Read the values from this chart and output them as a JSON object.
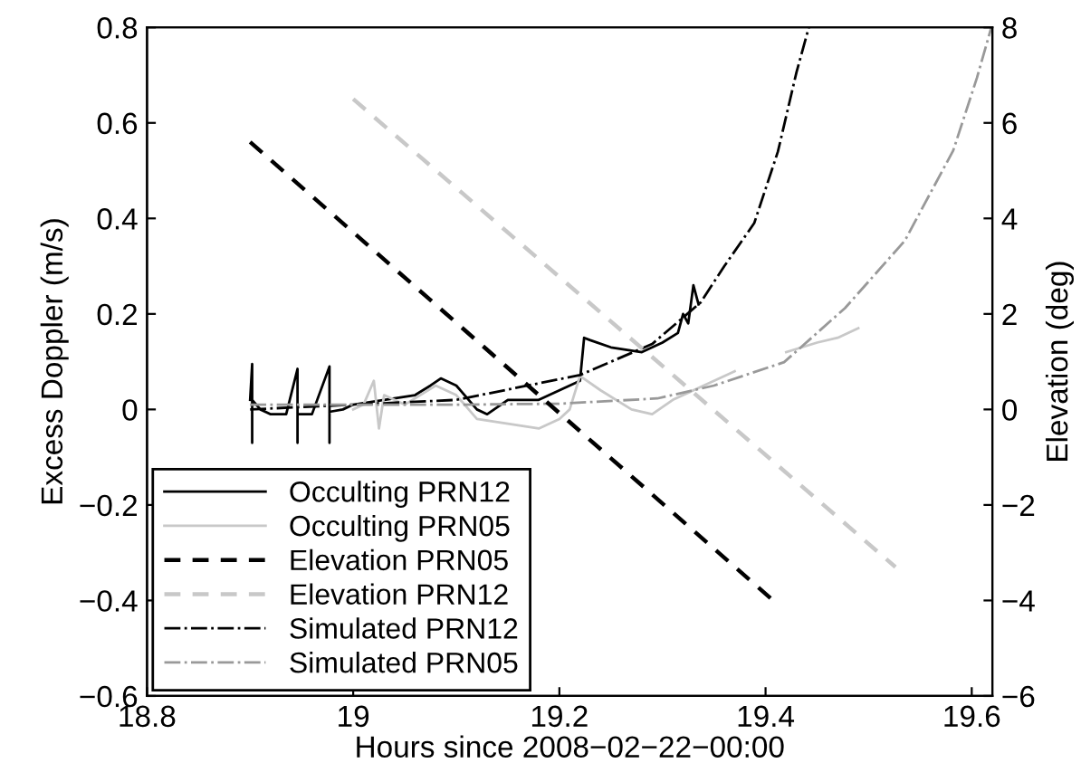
{
  "chart_data": {
    "type": "line",
    "xlabel": "Hours since 2008−02−22−00:00",
    "ylabel": "Excess Doppler (m/s)",
    "y2label": "Elevation (deg)",
    "xlim": [
      18.8,
      19.62
    ],
    "xticks": [
      18.8,
      19,
      19.2,
      19.4,
      19.6
    ],
    "ylim": [
      -0.6,
      0.8
    ],
    "yticks": [
      -0.6,
      -0.4,
      -0.2,
      0,
      0.2,
      0.4,
      0.6,
      0.8
    ],
    "y2lim": [
      -6,
      8
    ],
    "y2ticks": [
      -6,
      -4,
      -2,
      0,
      2,
      4,
      6,
      8
    ],
    "grid": false,
    "legend": "bottom left",
    "marker": "none",
    "series": [
      {
        "name": "Occulting PRN12",
        "color": "#000000",
        "line_style": "solid",
        "x": [
          18.9,
          18.902,
          18.902,
          18.902,
          18.91,
          18.92,
          18.935,
          18.946,
          18.946,
          18.946,
          18.96,
          18.977,
          18.977,
          18.977,
          18.99,
          19.0,
          19.03,
          19.06,
          19.075,
          19.085,
          19.1,
          19.12,
          19.13,
          19.15,
          19.18,
          19.2,
          19.22,
          19.224,
          19.23,
          19.25,
          19.28,
          19.3,
          19.315,
          19.32,
          19.325,
          19.33,
          19.335
        ],
        "values": [
          0.02,
          0.095,
          -0.07,
          0.02,
          0.0,
          -0.01,
          -0.01,
          0.085,
          -0.07,
          -0.01,
          -0.01,
          0.09,
          -0.07,
          -0.005,
          0.0,
          0.01,
          0.02,
          0.03,
          0.05,
          0.065,
          0.05,
          0.0,
          -0.01,
          0.02,
          0.02,
          0.04,
          0.06,
          0.15,
          0.145,
          0.13,
          0.12,
          0.14,
          0.16,
          0.2,
          0.18,
          0.26,
          0.22
        ]
      },
      {
        "name": "Occulting PRN05",
        "color": "#c8c8c8",
        "line_style": "solid",
        "x": [
          19.0,
          19.01,
          19.02,
          19.025,
          19.03,
          19.05,
          19.08,
          19.1,
          19.12,
          19.15,
          19.18,
          19.2,
          19.21,
          19.22,
          19.24,
          19.27,
          19.29,
          19.31,
          19.35,
          19.37,
          19.38,
          19.42,
          19.45,
          19.47,
          19.49
        ],
        "values": [
          0.0,
          0.01,
          0.06,
          -0.04,
          0.03,
          0.01,
          0.05,
          0.03,
          -0.02,
          -0.03,
          -0.04,
          -0.02,
          0.0,
          0.07,
          0.04,
          0.0,
          -0.01,
          0.02,
          0.06,
          0.08,
          null,
          0.12,
          0.14,
          0.15,
          0.17
        ]
      },
      {
        "name": "Elevation PRN05",
        "color": "#000000",
        "line_style": "dashed",
        "axis": "y2",
        "x": [
          18.9,
          19.41
        ],
        "values": [
          5.6,
          -4.05
        ]
      },
      {
        "name": "Elevation PRN12",
        "color": "#c8c8c8",
        "line_style": "dashed",
        "axis": "y2",
        "x": [
          19.0,
          19.526
        ],
        "values": [
          6.5,
          -3.3
        ]
      },
      {
        "name": "Simulated PRN12",
        "color": "#000000",
        "line_style": "dashdot",
        "x": [
          18.9,
          19.0,
          19.1,
          19.22,
          19.29,
          19.337,
          19.36,
          19.389,
          19.412,
          19.43,
          19.442
        ],
        "values": [
          0.0,
          0.01,
          0.02,
          0.072,
          0.137,
          0.224,
          0.3,
          0.39,
          0.54,
          0.706,
          0.8
        ]
      },
      {
        "name": "Simulated PRN05",
        "color": "#999999",
        "line_style": "dashdot",
        "x": [
          18.9,
          19.1,
          19.2,
          19.295,
          19.35,
          19.418,
          19.477,
          19.535,
          19.582,
          19.605,
          19.619
        ],
        "values": [
          0.01,
          0.01,
          0.012,
          0.023,
          0.05,
          0.099,
          0.212,
          0.353,
          0.542,
          0.694,
          0.8
        ]
      }
    ]
  }
}
